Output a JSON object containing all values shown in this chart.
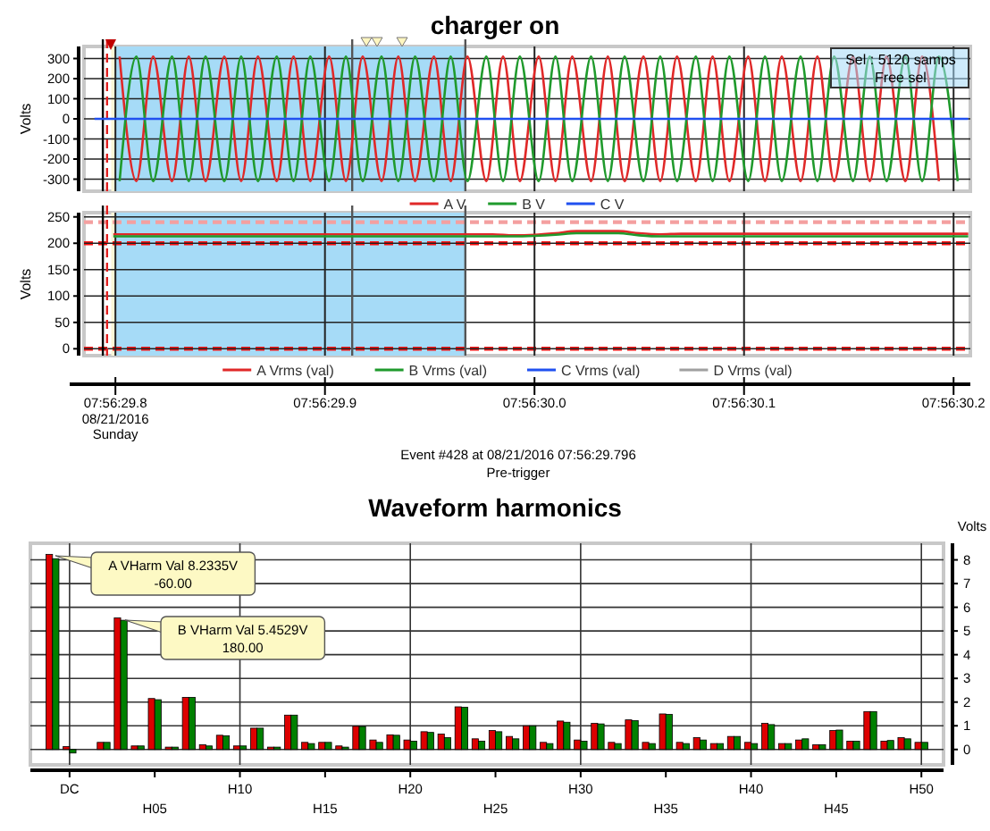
{
  "chart_data": [
    {
      "type": "line",
      "title": "charger on",
      "ylabel": "Volts",
      "xlim": [
        "2016-08-21T07:56:29.785",
        "2016-08-21T07:56:30.208"
      ],
      "ylim": [
        -360,
        360
      ],
      "xticks": [
        {
          "value": "2016-08-21T07:56:29.800",
          "label": null
        },
        {
          "value": "2016-08-21T07:56:29.900",
          "label": null
        },
        {
          "value": "2016-08-21T07:56:30.000",
          "label": null
        },
        {
          "value": "2016-08-21T07:56:30.100",
          "label": null
        },
        {
          "value": "2016-08-21T07:56:30.200",
          "label": null
        }
      ],
      "yticks": [
        -300,
        -200,
        -100,
        0,
        100,
        200,
        300
      ],
      "tick_labels": "y",
      "grid": true,
      "legend": "bottom",
      "x": [
        "2016-08-21T07:56:29.802",
        "2016-08-21T07:56:29.810",
        "2016-08-21T07:56:29.818",
        "2016-08-21T07:56:29.827",
        "2016-08-21T07:56:29.835",
        "2016-08-21T07:56:29.843",
        "2016-08-21T07:56:29.852",
        "2016-08-21T07:56:29.860",
        "2016-08-21T07:56:29.868",
        "2016-08-21T07:56:29.877",
        "2016-08-21T07:56:29.885",
        "2016-08-21T07:56:29.893",
        "2016-08-21T07:56:29.902",
        "2016-08-21T07:56:29.910",
        "2016-08-21T07:56:29.918",
        "2016-08-21T07:56:29.927",
        "2016-08-21T07:56:29.935",
        "2016-08-21T07:56:29.943",
        "2016-08-21T07:56:29.952",
        "2016-08-21T07:56:29.960",
        "2016-08-21T07:56:29.968",
        "2016-08-21T07:56:29.977",
        "2016-08-21T07:56:29.985",
        "2016-08-21T07:56:29.993",
        "2016-08-21T07:56:30.002",
        "2016-08-21T07:56:30.010",
        "2016-08-21T07:56:30.018",
        "2016-08-21T07:56:30.027",
        "2016-08-21T07:56:30.035",
        "2016-08-21T07:56:30.043",
        "2016-08-21T07:56:30.052",
        "2016-08-21T07:56:30.060",
        "2016-08-21T07:56:30.068",
        "2016-08-21T07:56:30.077",
        "2016-08-21T07:56:30.085",
        "2016-08-21T07:56:30.093",
        "2016-08-21T07:56:30.102",
        "2016-08-21T07:56:30.110",
        "2016-08-21T07:56:30.118",
        "2016-08-21T07:56:30.127",
        "2016-08-21T07:56:30.135",
        "2016-08-21T07:56:30.143",
        "2016-08-21T07:56:30.152",
        "2016-08-21T07:56:30.160",
        "2016-08-21T07:56:30.168",
        "2016-08-21T07:56:30.177",
        "2016-08-21T07:56:30.185",
        "2016-08-21T07:56:30.193",
        "2016-08-21T07:56:30.202"
      ],
      "series": [
        {
          "name": "A V",
          "color": "#e02828",
          "values": [
            310,
            -310,
            310,
            -310,
            310,
            -310,
            310,
            -310,
            310,
            -310,
            310,
            -310,
            310,
            -310,
            310,
            -310,
            310,
            -310,
            310,
            -310,
            310,
            -310,
            310,
            -310,
            310,
            -310,
            310,
            -310,
            310,
            -310,
            310,
            -310,
            310,
            -310,
            310,
            -310,
            310,
            -310,
            310,
            -310,
            310,
            -310,
            310,
            -310,
            310,
            -310,
            310,
            -310,
            null
          ]
        },
        {
          "name": "B V",
          "color": "#1f9a2c",
          "values": [
            -310,
            310,
            -310,
            310,
            -310,
            310,
            -310,
            310,
            -310,
            310,
            -310,
            310,
            -310,
            310,
            -310,
            310,
            -310,
            310,
            -310,
            310,
            -310,
            310,
            -310,
            310,
            -310,
            310,
            -310,
            310,
            -310,
            310,
            -310,
            310,
            -310,
            310,
            -310,
            310,
            -310,
            310,
            -310,
            310,
            -310,
            310,
            -310,
            310,
            -310,
            310,
            -310,
            310,
            -310
          ]
        },
        {
          "name": "C V",
          "color": "#2050f0",
          "x": [
            "2016-08-21T07:56:29.790",
            "2016-08-21T07:56:30.207"
          ],
          "values": [
            0,
            0
          ]
        }
      ],
      "bands": [
        {
          "axis": "x",
          "from": "2016-08-21T07:56:29.798",
          "to": "2016-08-21T07:56:29.913",
          "color": "#fbf6d6"
        },
        {
          "axis": "x",
          "from": "2016-08-21T07:56:29.800",
          "to": "2016-08-21T07:56:29.967",
          "color": "#a6dbf7"
        }
      ],
      "ref_lines": [
        {
          "axis": "x",
          "value": "2016-08-21T07:56:29.794",
          "color": "#000000",
          "line_style": "solid"
        },
        {
          "axis": "x",
          "value": "2016-08-21T07:56:29.796",
          "color": "#e02020",
          "line_style": "dashed"
        },
        {
          "axis": "x",
          "value": "2016-08-21T07:56:29.913",
          "color": "#555555",
          "line_style": "solid"
        },
        {
          "axis": "x",
          "value": "2016-08-21T07:56:29.967",
          "color": "#555555",
          "line_style": "solid"
        }
      ],
      "annotations": [
        "Sel : 5120 samps",
        "Free sel"
      ]
    },
    {
      "type": "line",
      "ylabel": "Volts",
      "xlim": [
        "2016-08-21T07:56:29.785",
        "2016-08-21T07:56:30.208"
      ],
      "ylim": [
        -13,
        258
      ],
      "xticks": [
        {
          "value": "2016-08-21T07:56:29.800",
          "label": "07:56:29.8"
        },
        {
          "value": "2016-08-21T07:56:29.900",
          "label": "07:56:29.9"
        },
        {
          "value": "2016-08-21T07:56:30.000",
          "label": "07:56:30.0"
        },
        {
          "value": "2016-08-21T07:56:30.100",
          "label": "07:56:30.1"
        },
        {
          "value": "2016-08-21T07:56:30.200",
          "label": "07:56:30.2"
        }
      ],
      "yticks": [
        0,
        50,
        100,
        150,
        200,
        250
      ],
      "grid": true,
      "legend": "bottom",
      "series": [
        {
          "name": "A Vrms (val)",
          "color": "#e02828",
          "x": [
            "2016-08-21T07:56:29.799",
            "2016-08-21T07:56:29.980",
            "2016-08-21T07:56:29.990",
            "2016-08-21T07:56:30.000",
            "2016-08-21T07:56:30.010",
            "2016-08-21T07:56:30.020",
            "2016-08-21T07:56:30.040",
            "2016-08-21T07:56:30.050",
            "2016-08-21T07:56:30.060",
            "2016-08-21T07:56:30.070",
            "2016-08-21T07:56:30.207"
          ],
          "values": [
            217,
            217,
            215,
            216,
            219,
            223,
            223,
            219,
            217,
            218,
            218
          ]
        },
        {
          "name": "B Vrms (val)",
          "color": "#1f9a2c",
          "x": [
            "2016-08-21T07:56:29.799",
            "2016-08-21T07:56:29.980",
            "2016-08-21T07:56:29.990",
            "2016-08-21T07:56:30.000",
            "2016-08-21T07:56:30.010",
            "2016-08-21T07:56:30.020",
            "2016-08-21T07:56:30.040",
            "2016-08-21T07:56:30.050",
            "2016-08-21T07:56:30.060",
            "2016-08-21T07:56:30.070",
            "2016-08-21T07:56:30.207"
          ],
          "values": [
            213,
            213,
            213,
            214,
            216,
            219,
            219,
            215,
            213,
            213,
            213
          ]
        },
        {
          "name": "C Vrms (val)",
          "color": "#2050f0"
        },
        {
          "name": "D Vrms (val)",
          "color": "#a0a0a0"
        }
      ],
      "bands": [
        {
          "axis": "x",
          "from": "2016-08-21T07:56:29.798",
          "to": "2016-08-21T07:56:29.913",
          "color": "#fbf6d6"
        },
        {
          "axis": "x",
          "from": "2016-08-21T07:56:29.800",
          "to": "2016-08-21T07:56:29.967",
          "color": "#a6dbf7"
        }
      ],
      "ref_lines": [
        {
          "axis": "y",
          "value": 240,
          "color": "#f4a0a0",
          "line_style": "dashed"
        },
        {
          "axis": "y",
          "value": 200,
          "color": "#ff1010",
          "line_style": "dashed"
        },
        {
          "axis": "y",
          "value": 0,
          "color": "#f01818",
          "line_style": "dashed"
        },
        {
          "axis": "x",
          "value": "2016-08-21T07:56:29.794",
          "color": "#000000",
          "line_style": "solid"
        },
        {
          "axis": "x",
          "value": "2016-08-21T07:56:29.796",
          "color": "#e02020",
          "line_style": "dashed"
        },
        {
          "axis": "x",
          "value": "2016-08-21T07:56:29.913",
          "color": "#555555",
          "line_style": "solid"
        },
        {
          "axis": "x",
          "value": "2016-08-21T07:56:29.967",
          "color": "#555555",
          "line_style": "solid"
        }
      ],
      "annotations": [
        "08/21/2016",
        "Sunday",
        "Event #428 at 08/21/2016 07:56:29.796",
        "Pre-trigger"
      ]
    },
    {
      "type": "bar",
      "title": "Waveform harmonics",
      "ylabel": "Volts",
      "ylim": [
        -0.65,
        8.7
      ],
      "yticks": [
        0,
        1,
        2,
        3,
        4,
        5,
        6,
        7,
        8
      ],
      "grid": true,
      "categories": [
        null,
        "DC",
        null,
        null,
        null,
        null,
        "H05",
        null,
        null,
        null,
        null,
        "H10",
        null,
        null,
        null,
        null,
        "H15",
        null,
        null,
        null,
        null,
        "H20",
        null,
        null,
        null,
        null,
        "H25",
        null,
        null,
        null,
        null,
        "H30",
        null,
        null,
        null,
        null,
        "H35",
        null,
        null,
        null,
        null,
        "H40",
        null,
        null,
        null,
        null,
        "H45",
        null,
        null,
        null,
        null,
        "H50"
      ],
      "series": [
        {
          "color": "#dd0000",
          "values": [
            8.2335,
            0.12,
            null,
            0.3,
            5.55,
            0.15,
            2.15,
            0.1,
            2.2,
            0.2,
            0.6,
            0.15,
            0.9,
            0.1,
            1.45,
            0.3,
            0.3,
            0.15,
            0.98,
            0.4,
            0.62,
            0.4,
            0.75,
            0.65,
            1.8,
            0.45,
            0.8,
            0.55,
            1.0,
            0.3,
            1.2,
            0.4,
            1.1,
            0.3,
            1.25,
            0.3,
            1.5,
            0.3,
            0.5,
            0.25,
            0.55,
            0.3,
            1.1,
            0.25,
            0.4,
            0.2,
            0.8,
            0.35,
            1.6,
            0.35,
            0.5,
            0.3
          ]
        },
        {
          "color": "#008000",
          "values": [
            8.05,
            -0.15,
            null,
            0.3,
            5.4529,
            0.15,
            2.1,
            0.1,
            2.2,
            0.15,
            0.58,
            0.15,
            0.9,
            0.1,
            1.45,
            0.25,
            0.3,
            0.1,
            0.97,
            0.3,
            0.6,
            0.35,
            0.72,
            0.5,
            1.78,
            0.35,
            0.75,
            0.45,
            1.0,
            0.25,
            1.15,
            0.35,
            1.08,
            0.25,
            1.22,
            0.25,
            1.48,
            0.25,
            0.4,
            0.25,
            0.55,
            0.25,
            1.05,
            0.25,
            0.45,
            0.2,
            0.82,
            0.35,
            1.6,
            0.38,
            0.45,
            0.3
          ]
        }
      ],
      "annotations": [
        "A VHarm Val 8.2335V\n-60.00",
        "B VHarm Val 5.4529V\n180.00"
      ]
    }
  ]
}
